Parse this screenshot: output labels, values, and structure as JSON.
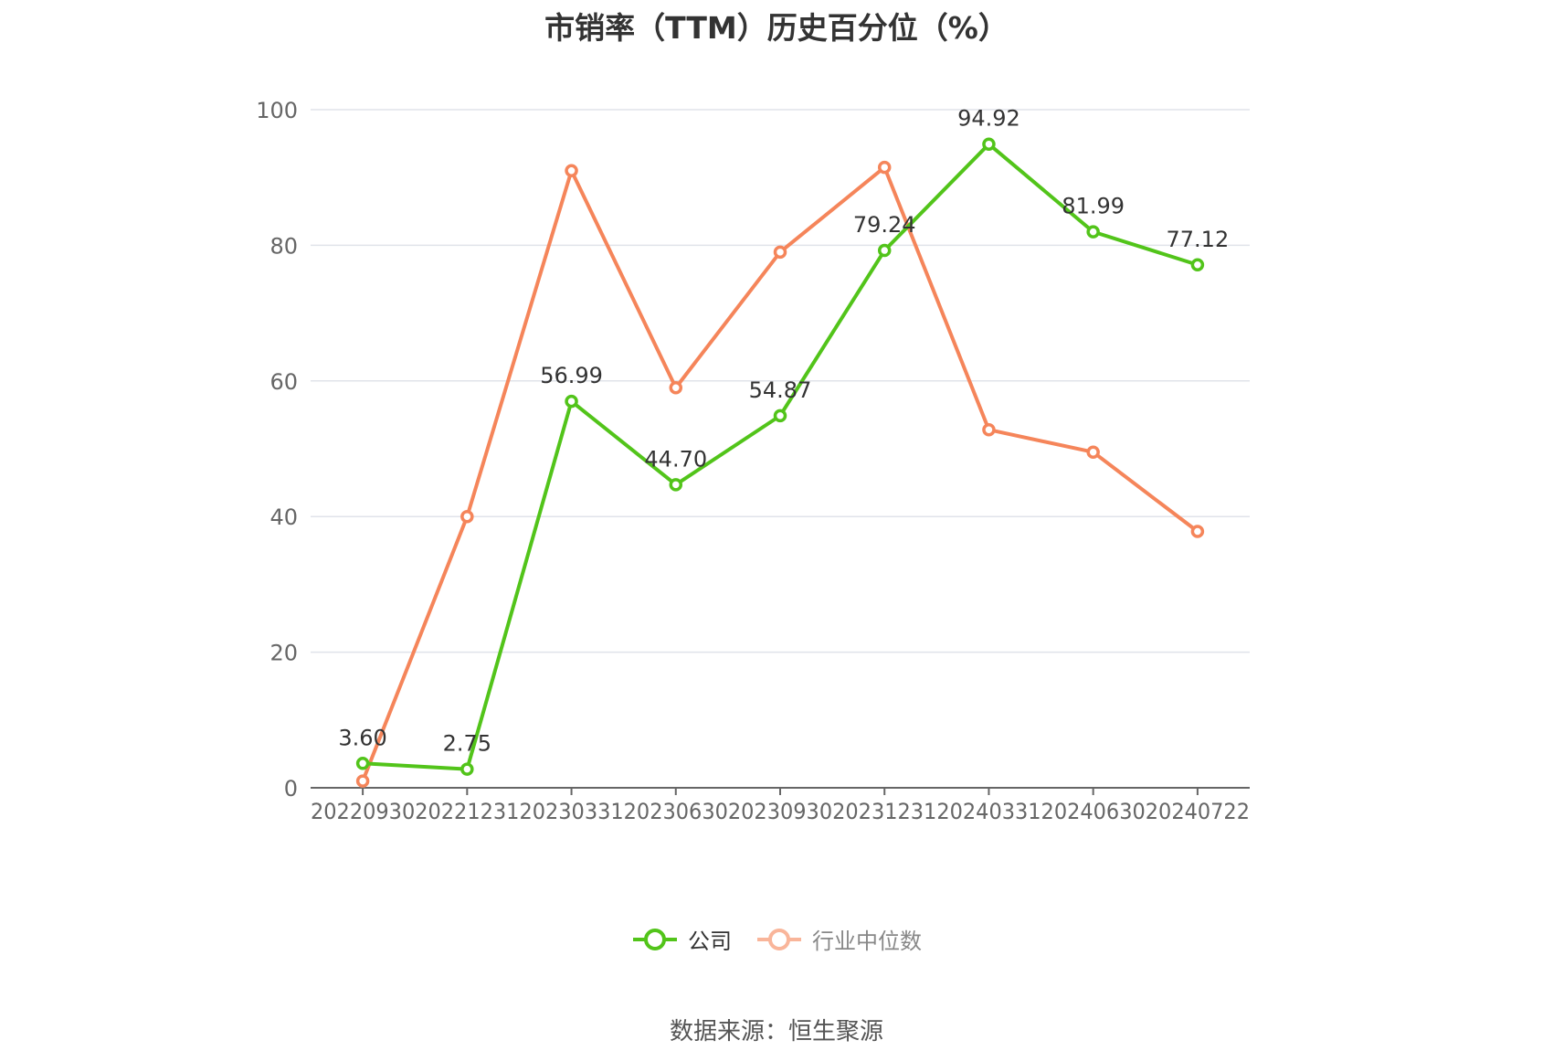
{
  "title": "市销率（TTM）历史百分位（%）",
  "source": "数据来源：恒生聚源",
  "colors": {
    "company": "#52c41a",
    "industry": "#f5855a",
    "industry_legend": "#f9b59a",
    "grid": "#e0e3ea",
    "axis": "#666666",
    "tick_text": "#666666"
  },
  "chart_data": {
    "type": "line",
    "title": "市销率（TTM）历史百分位（%）",
    "xlabel": "",
    "ylabel": "",
    "ylim": [
      0,
      100
    ],
    "yticks": [
      "0",
      "20",
      "40",
      "60",
      "80",
      "100"
    ],
    "grid": true,
    "legend_position": "bottom-center",
    "categories": [
      "20220930",
      "20221231",
      "20230331",
      "20230630",
      "20230930",
      "20231231",
      "20240331",
      "20240630",
      "20240722"
    ],
    "series": [
      {
        "name": "公司",
        "values": [
          3.6,
          2.75,
          56.99,
          44.7,
          54.87,
          79.24,
          94.92,
          81.99,
          77.12
        ],
        "labels": [
          "3.60",
          "2.75",
          "56.99",
          "44.70",
          "54.87",
          "79.24",
          "94.92",
          "81.99",
          "77.12"
        ]
      },
      {
        "name": "行业中位数",
        "values": [
          1.0,
          40.0,
          91.0,
          59.0,
          79.0,
          91.5,
          52.8,
          49.5,
          37.8
        ]
      }
    ]
  }
}
